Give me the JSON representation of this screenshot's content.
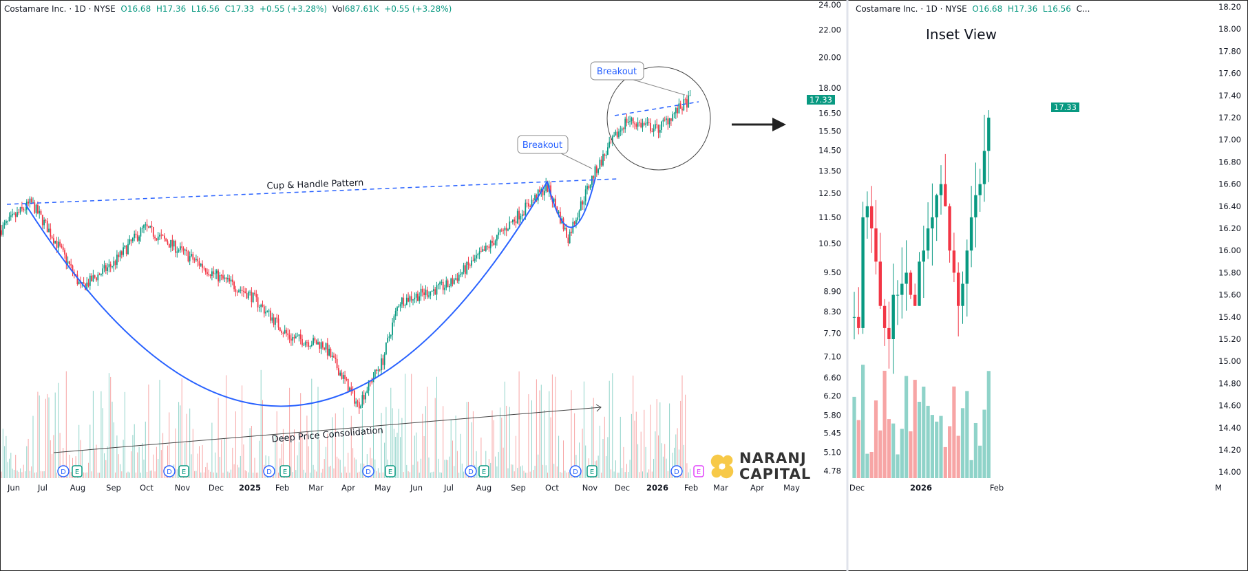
{
  "main_header": {
    "symbol": "Costamare Inc. · 1D · NYSE",
    "o": "O16.68",
    "h": "H17.36",
    "l": "L16.56",
    "c": "C17.33",
    "chg": "+0.55 (+3.28%)",
    "vol_label": "Vol",
    "vol": "687.61K",
    "vol_chg": "+0.55 (+3.28%)"
  },
  "inset_header": {
    "symbol": "Costamare Inc. · 1D · NYSE",
    "o": "O16.68",
    "h": "H17.36",
    "l": "L16.56",
    "c": "C..."
  },
  "inset_title": "Inset View",
  "last_price": "17.33",
  "logo": {
    "line1": "NARANJ",
    "line2": "CAPITAL"
  },
  "colors": {
    "up": "#089981",
    "down": "#f23645",
    "vol_up": "#8fd3c9",
    "vol_down": "#f7a5a5",
    "annotation": "#2962ff"
  },
  "annotations": {
    "cup": "Cup & Handle Pattern",
    "breakout1": "Breakout",
    "breakout2": "Breakout",
    "consolidation": "Deep Price Consolidation"
  },
  "chart_data": [
    {
      "type": "candlestick",
      "scale": "log",
      "y_ticks": [
        "24.00",
        "22.00",
        "20.00",
        "18.00",
        "16.50",
        "15.50",
        "14.50",
        "13.50",
        "12.50",
        "11.50",
        "10.50",
        "9.50",
        "8.90",
        "8.30",
        "7.70",
        "7.10",
        "6.60",
        "6.20",
        "5.80",
        "5.45",
        "5.10",
        "4.78"
      ],
      "x_ticks": [
        "Jun",
        "Jul",
        "Aug",
        "Sep",
        "Oct",
        "Nov",
        "Dec",
        "2025",
        "Feb",
        "Mar",
        "Apr",
        "May",
        "Jun",
        "Jul",
        "Aug",
        "Sep",
        "Oct",
        "Nov",
        "Dec",
        "2026",
        "Feb",
        "Mar",
        "Apr",
        "May"
      ],
      "approx_closes": [
        [
          "Jun 2024",
          11.0
        ],
        [
          "Jul 2024",
          12.1
        ],
        [
          "Aug 2024",
          9.0
        ],
        [
          "Sep 2024",
          9.8
        ],
        [
          "Oct 2024",
          11.1
        ],
        [
          "Nov 2024",
          10.2
        ],
        [
          "Dec 2024",
          9.4
        ],
        [
          "Jan 2025",
          8.8
        ],
        [
          "Feb 2025",
          7.6
        ],
        [
          "Mar 2025",
          7.4
        ],
        [
          "Apr 2025",
          6.0
        ],
        [
          "May 2025",
          7.0
        ],
        [
          "Jun 2025",
          8.6
        ],
        [
          "Jul 2025",
          9.1
        ],
        [
          "Aug 2025",
          10.2
        ],
        [
          "Sep 2025",
          11.6
        ],
        [
          "Oct 2025",
          12.8
        ],
        [
          "Oct 2025 low",
          10.7
        ],
        [
          "Nov 2025",
          13.5
        ],
        [
          "Dec 2025",
          16.1
        ],
        [
          "Jan 2026",
          15.6
        ],
        [
          "Feb 2026",
          17.33
        ]
      ],
      "events": [
        "D",
        "E",
        "D",
        "E",
        "D",
        "E",
        "D",
        "E",
        "D",
        "E",
        "D",
        "E"
      ]
    },
    {
      "type": "candlestick",
      "scale": "linear",
      "y_ticks": [
        "18.20",
        "18.00",
        "17.80",
        "17.60",
        "17.40",
        "17.20",
        "17.00",
        "16.80",
        "16.60",
        "16.40",
        "16.20",
        "16.00",
        "15.80",
        "15.60",
        "15.40",
        "15.20",
        "15.00",
        "14.80",
        "14.60",
        "14.40",
        "14.20",
        "14.00"
      ],
      "x_ticks": [
        "Dec",
        "2026",
        "Feb",
        "M"
      ]
    }
  ]
}
